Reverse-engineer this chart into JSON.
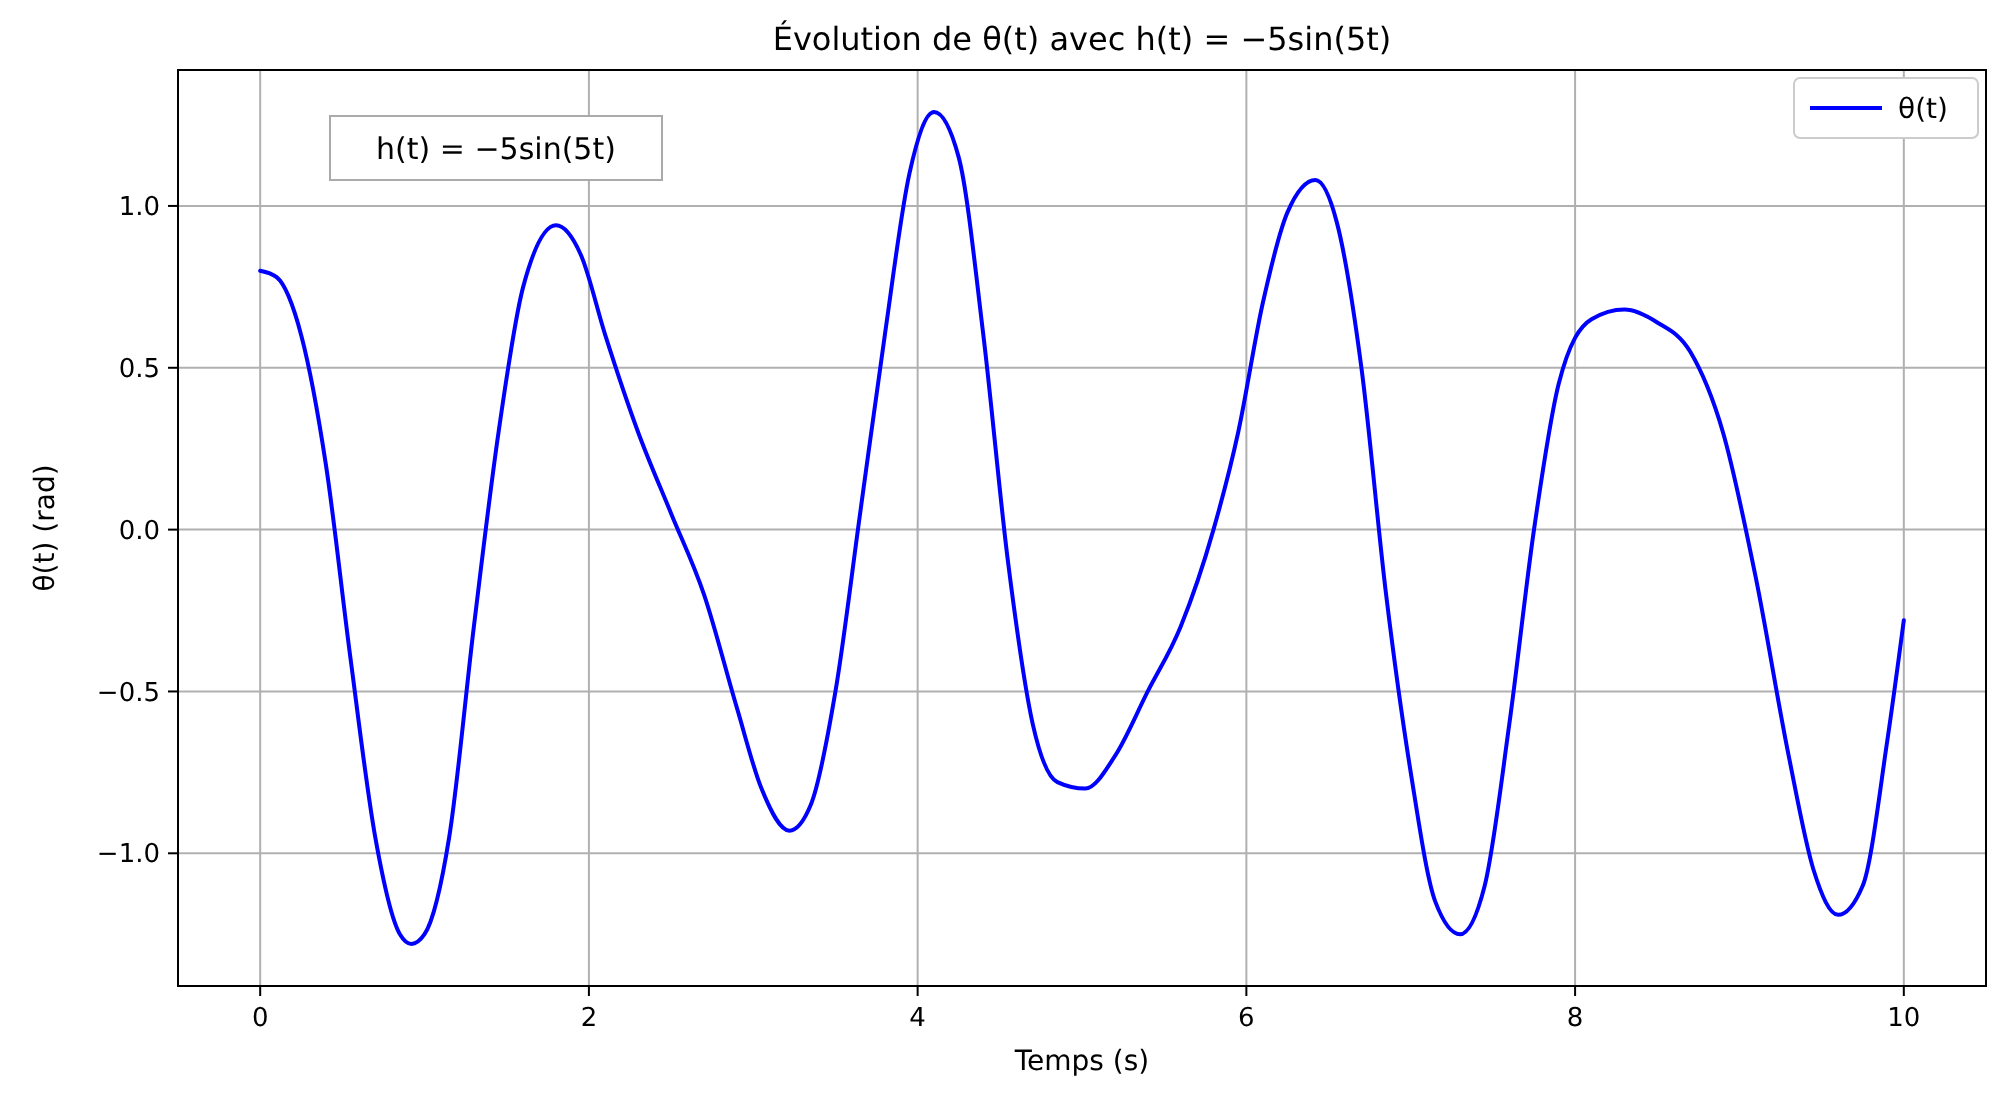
{
  "chart_data": {
    "type": "line",
    "title": "Évolution de θ(t) avec h(t) = −5sin(5t)",
    "xlabel": "Temps (s)",
    "ylabel": "θ(t) (rad)",
    "annotations": [
      "h(t) = −5sin(5t)"
    ],
    "xlim": [
      -0.5,
      10.5
    ],
    "xticks": [
      0,
      2,
      4,
      6,
      8,
      10
    ],
    "ylim": [
      -1.41,
      1.42
    ],
    "yticks": [
      {
        "value": -1,
        "label": "−1.0"
      },
      {
        "value": -0.5,
        "label": "−0.5"
      },
      {
        "value": 0,
        "label": "0.0"
      },
      {
        "value": 0.5,
        "label": "0.5"
      },
      {
        "value": 1,
        "label": "1.0"
      }
    ],
    "grid": true,
    "legend": "top right",
    "series": [
      {
        "name": "θ(t)",
        "color": "#0000ff",
        "x": [
          0,
          0.1,
          0.25,
          0.4,
          0.55,
          0.7,
          0.85,
          0.92,
          1.0,
          1.15,
          1.3,
          1.45,
          1.6,
          1.8,
          1.95,
          2.1,
          2.3,
          2.5,
          2.7,
          2.9,
          3.05,
          3.22,
          3.35,
          3.5,
          3.65,
          3.8,
          3.95,
          4.1,
          4.25,
          4.4,
          4.55,
          4.7,
          4.85,
          5.02,
          5.2,
          5.4,
          5.6,
          5.8,
          5.95,
          6.1,
          6.25,
          6.42,
          6.55,
          6.7,
          6.85,
          7.0,
          7.15,
          7.3,
          7.45,
          7.6,
          7.75,
          7.9,
          8.1,
          8.3,
          8.5,
          8.7,
          8.9,
          9.1,
          9.3,
          9.45,
          9.6,
          9.75,
          9.9,
          10.0
        ],
        "values": [
          0.8,
          0.78,
          0.6,
          0.2,
          -0.4,
          -0.95,
          -1.25,
          -1.28,
          -1.25,
          -0.95,
          -0.3,
          0.3,
          0.75,
          0.94,
          0.85,
          0.6,
          0.3,
          0.05,
          -0.2,
          -0.55,
          -0.8,
          -0.93,
          -0.85,
          -0.5,
          0.05,
          0.6,
          1.1,
          1.29,
          1.15,
          0.6,
          -0.1,
          -0.6,
          -0.78,
          -0.8,
          -0.7,
          -0.5,
          -0.3,
          0.0,
          0.3,
          0.7,
          0.98,
          1.08,
          0.95,
          0.5,
          -0.2,
          -0.75,
          -1.15,
          -1.25,
          -1.1,
          -0.6,
          0.0,
          0.45,
          0.65,
          0.68,
          0.64,
          0.55,
          0.3,
          -0.15,
          -0.7,
          -1.05,
          -1.19,
          -1.1,
          -0.65,
          -0.28
        ]
      }
    ]
  }
}
